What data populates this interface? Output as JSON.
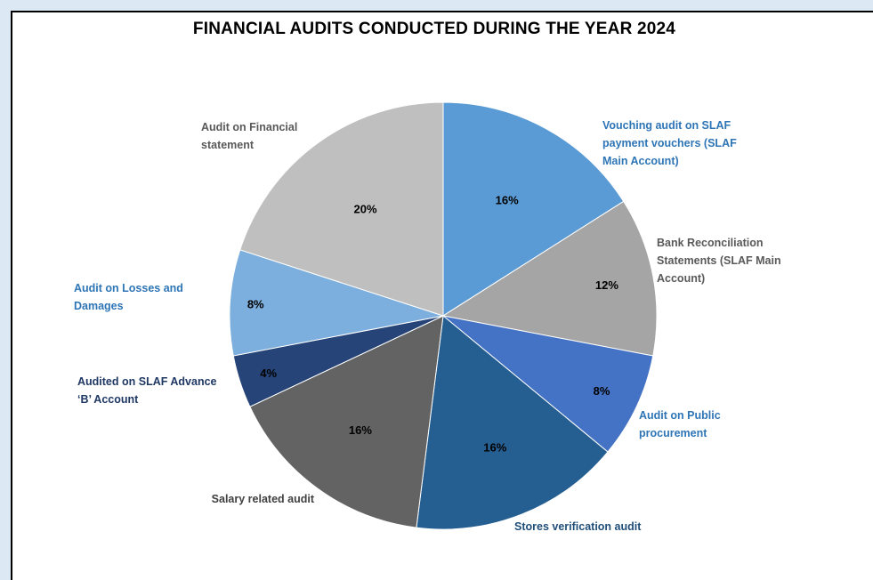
{
  "chart_data": {
    "type": "pie",
    "title": "FINANCIAL AUDITS CONDUCTED DURING THE YEAR 2024",
    "slices": [
      {
        "label": [
          "Vouching audit on SLAF",
          "payment vouchers (SLAF",
          "Main Account)"
        ],
        "value": 16,
        "display": "16%",
        "color": "#5b9bd5",
        "label_color": "#2e75b6"
      },
      {
        "label": [
          "Bank Reconciliation",
          "Statements (SLAF Main",
          "Account)"
        ],
        "value": 12,
        "display": "12%",
        "color": "#a5a5a5",
        "label_color": "#595959"
      },
      {
        "label": [
          "Audit on Public",
          "procurement"
        ],
        "value": 8,
        "display": "8%",
        "color": "#4472c4",
        "label_color": "#2e75b6"
      },
      {
        "label": [
          "Stores verification audit"
        ],
        "value": 16,
        "display": "16%",
        "color": "#255e91",
        "label_color": "#1f4e79"
      },
      {
        "label": [
          "Salary related audit"
        ],
        "value": 16,
        "display": "16%",
        "color": "#636363",
        "label_color": "#404040"
      },
      {
        "label": [
          "Audited on SLAF Advance",
          "‘B’ Account"
        ],
        "value": 4,
        "display": "4%",
        "color": "#264478",
        "label_color": "#1f3864"
      },
      {
        "label": [
          "Audit on Losses and",
          "Damages"
        ],
        "value": 8,
        "display": "8%",
        "color": "#7cafdd",
        "label_color": "#2e75b6"
      },
      {
        "label": [
          "Audit on Financial",
          "statement"
        ],
        "value": 20,
        "display": "20%",
        "color": "#bfbfbf",
        "label_color": "#595959"
      }
    ]
  }
}
